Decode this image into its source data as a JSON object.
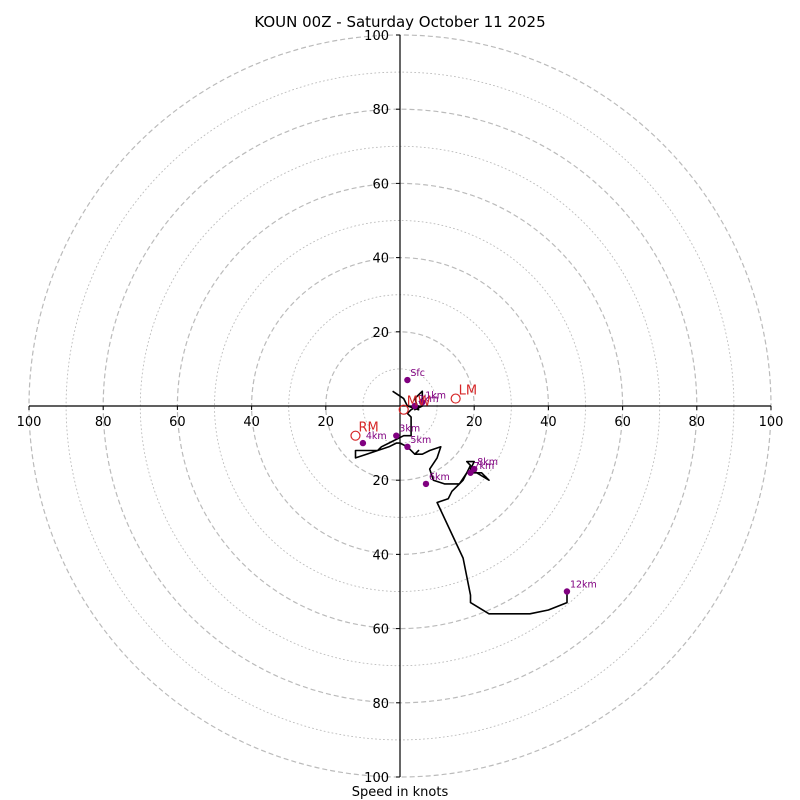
{
  "chart_data": {
    "type": "hodograph",
    "title": "KOUN 00Z - Saturday October 11 2025",
    "xlabel": "Speed in knots",
    "units": "knots",
    "xlim": [
      -100,
      100
    ],
    "ylim": [
      -100,
      100
    ],
    "rings": {
      "major_dashed": [
        20,
        40,
        60,
        80,
        100
      ],
      "minor_dotted": [
        10,
        30,
        50,
        70,
        90
      ]
    },
    "x_ticks": [
      {
        "value": -100,
        "label": "100"
      },
      {
        "value": -80,
        "label": "80"
      },
      {
        "value": -60,
        "label": "60"
      },
      {
        "value": -40,
        "label": "40"
      },
      {
        "value": -20,
        "label": "20"
      },
      {
        "value": 20,
        "label": "20"
      },
      {
        "value": 40,
        "label": "40"
      },
      {
        "value": 60,
        "label": "60"
      },
      {
        "value": 80,
        "label": "80"
      },
      {
        "value": 100,
        "label": "100"
      }
    ],
    "y_ticks": [
      {
        "value": 100,
        "label": "100"
      },
      {
        "value": 80,
        "label": "80"
      },
      {
        "value": 60,
        "label": "60"
      },
      {
        "value": 40,
        "label": "40"
      },
      {
        "value": 20,
        "label": "20"
      },
      {
        "value": -20,
        "label": "20"
      },
      {
        "value": -40,
        "label": "40"
      },
      {
        "value": -60,
        "label": "60"
      },
      {
        "value": -80,
        "label": "80"
      },
      {
        "value": -100,
        "label": "100"
      }
    ],
    "trace": {
      "name": "wind profile",
      "color": "#000000",
      "u": [
        -2,
        1,
        2,
        5,
        4,
        6,
        6,
        4,
        5,
        3,
        2,
        3,
        3,
        3,
        1,
        -1,
        -3,
        -5,
        -6,
        -10,
        -12,
        -12,
        -9,
        -6,
        -3,
        -1,
        0,
        2,
        4,
        5,
        4,
        6,
        8,
        11,
        10,
        8,
        9,
        12,
        16,
        17,
        18,
        19,
        18,
        20,
        19,
        24,
        22,
        18,
        16,
        14,
        13,
        10,
        17,
        19,
        19,
        24,
        28,
        35,
        40,
        45,
        45
      ],
      "v": [
        4,
        2,
        0,
        -1,
        2,
        4,
        0,
        -1,
        0,
        -1,
        -2,
        -3,
        -6,
        -8,
        -8,
        -9,
        -10,
        -11,
        -12,
        -12,
        -12,
        -14,
        -13,
        -12,
        -11,
        -10,
        -10,
        -11,
        -13,
        -12,
        -13,
        -13,
        -12,
        -11,
        -14,
        -17,
        -20,
        -21,
        -21,
        -20,
        -18,
        -16,
        -15,
        -15,
        -17,
        -20,
        -18,
        -18,
        -21,
        -23,
        -25,
        -26,
        -41,
        -51,
        -53,
        -56,
        -56,
        -56,
        -55,
        -53,
        -50
      ]
    },
    "height_labels": [
      {
        "label": "Sfc",
        "u": 2,
        "v": 7
      },
      {
        "label": "1km",
        "u": 6,
        "v": 1
      },
      {
        "label": "2km",
        "u": 4,
        "v": 0
      },
      {
        "label": "3km",
        "u": -1,
        "v": -8
      },
      {
        "label": "4km",
        "u": -10,
        "v": -10
      },
      {
        "label": "5km",
        "u": 2,
        "v": -11
      },
      {
        "label": "6km",
        "u": 7,
        "v": -21
      },
      {
        "label": "7km",
        "u": 19,
        "v": -18
      },
      {
        "label": "8km",
        "u": 20,
        "v": -17
      },
      {
        "label": "12km",
        "u": 45,
        "v": -50
      }
    ],
    "storm_motions": [
      {
        "label": "RM",
        "u": -12,
        "v": -8
      },
      {
        "label": "LM",
        "u": 15,
        "v": 2
      },
      {
        "label": "MW",
        "u": 1,
        "v": -1
      }
    ],
    "colors": {
      "height_marker": "#800080",
      "storm_motion": "#d62728",
      "ring": "#bbbbbb",
      "trace": "#000000"
    }
  }
}
